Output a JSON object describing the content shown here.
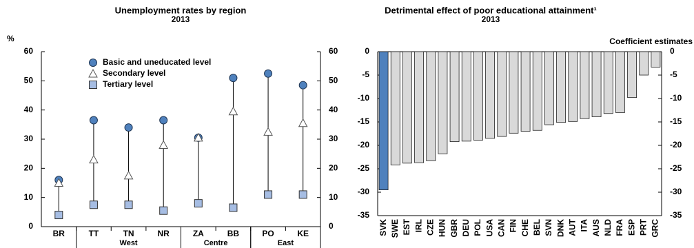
{
  "chart_data": [
    {
      "type": "dot",
      "title": "Unemployment rates by region",
      "subtitle": "2013",
      "y_label": "%",
      "categories": [
        "BR",
        "TT",
        "TN",
        "NR",
        "ZA",
        "BB",
        "PO",
        "KE"
      ],
      "groups": [
        {
          "name": "West",
          "span": [
            1,
            3
          ]
        },
        {
          "name": "Centre",
          "span": [
            4,
            5
          ]
        },
        {
          "name": "East",
          "span": [
            6,
            7
          ]
        }
      ],
      "series": [
        {
          "name": "Basic and uneducated level",
          "marker": "circle",
          "color": "#4f81bd",
          "values": [
            16,
            36.5,
            34,
            36.5,
            30.5,
            51,
            52.5,
            48.5
          ]
        },
        {
          "name": "Secondary level",
          "marker": "triangle",
          "color": "#ffffff",
          "values": [
            15,
            23,
            17.5,
            28,
            30.5,
            39.5,
            32.5,
            35.5
          ]
        },
        {
          "name": "Tertiary level",
          "marker": "square",
          "color": "#a6bde3",
          "values": [
            4,
            7.5,
            7.5,
            5.5,
            8,
            6.5,
            11,
            11
          ]
        }
      ],
      "ylim": [
        0,
        60
      ],
      "yticks": [
        0,
        10,
        20,
        30,
        40,
        50,
        60
      ],
      "y2lim": [
        0,
        60
      ],
      "y2ticks": [
        0,
        10,
        20,
        30,
        40,
        50,
        60
      ],
      "legend": "upper left",
      "grid": false
    },
    {
      "type": "bar",
      "title": "Detrimental effect of poor educational attainment¹",
      "subtitle": "2013",
      "y_label": "Coefficient estimates",
      "categories": [
        "SVK",
        "SWE",
        "EST",
        "IRL",
        "CZE",
        "HUN",
        "GBR",
        "DEU",
        "POL",
        "USA",
        "CAN",
        "FIN",
        "CHE",
        "BEL",
        "SVN",
        "DNK",
        "AUT",
        "ITA",
        "AUS",
        "NLD",
        "FRA",
        "ESP",
        "PRT",
        "GRC"
      ],
      "values": [
        -29.5,
        -24.2,
        -23.8,
        -23.7,
        -23.3,
        -21.8,
        -19.2,
        -19.1,
        -18.9,
        -18.5,
        -18.1,
        -17.4,
        -17.0,
        -16.8,
        -15.6,
        -15.1,
        -14.9,
        -14.3,
        -13.9,
        -13.2,
        -13.0,
        -9.8,
        -5.0,
        -3.3
      ],
      "colors": [
        "#4f81bd",
        "#d9d9d9",
        "#d9d9d9",
        "#d9d9d9",
        "#d9d9d9",
        "#d9d9d9",
        "#d9d9d9",
        "#d9d9d9",
        "#d9d9d9",
        "#d9d9d9",
        "#d9d9d9",
        "#d9d9d9",
        "#d9d9d9",
        "#d9d9d9",
        "#d9d9d9",
        "#d9d9d9",
        "#d9d9d9",
        "#d9d9d9",
        "#d9d9d9",
        "#d9d9d9",
        "#d9d9d9",
        "#d9d9d9",
        "#d9d9d9",
        "#d9d9d9"
      ],
      "ylim": [
        -35,
        0
      ],
      "yticks": [
        -35,
        -30,
        -25,
        -20,
        -15,
        -10,
        -5,
        0
      ],
      "y2lim": [
        -35,
        0
      ],
      "y2ticks": [
        -35,
        -30,
        -25,
        -20,
        -15,
        -10,
        -5,
        0
      ],
      "grid": false
    }
  ]
}
